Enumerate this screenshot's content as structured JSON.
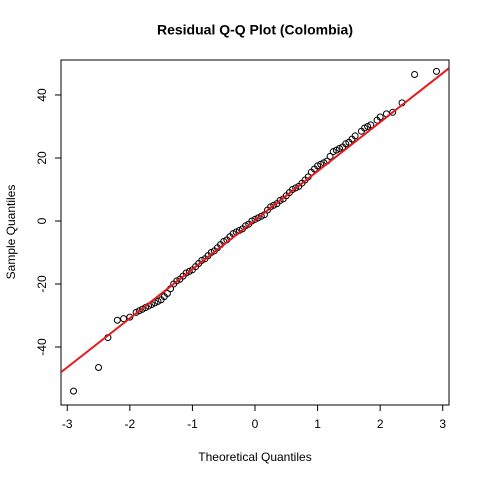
{
  "chart_data": {
    "type": "scatter",
    "title": "Residual Q-Q Plot (Colombia)",
    "x_label": "Theoretical Quantiles",
    "y_label": "Sample Quantiles",
    "x": [
      -2.9,
      -2.5,
      -2.35,
      -2.2,
      -2.1,
      -2.0,
      -1.9,
      -1.85,
      -1.8,
      -1.75,
      -1.7,
      -1.65,
      -1.6,
      -1.55,
      -1.5,
      -1.45,
      -1.4,
      -1.35,
      -1.3,
      -1.25,
      -1.2,
      -1.15,
      -1.1,
      -1.05,
      -1.0,
      -0.95,
      -0.9,
      -0.85,
      -0.8,
      -0.75,
      -0.7,
      -0.65,
      -0.6,
      -0.55,
      -0.5,
      -0.45,
      -0.4,
      -0.35,
      -0.3,
      -0.25,
      -0.2,
      -0.15,
      -0.1,
      -0.05,
      0,
      0.05,
      0.1,
      0.15,
      0.2,
      0.25,
      0.3,
      0.35,
      0.4,
      0.45,
      0.5,
      0.55,
      0.6,
      0.65,
      0.7,
      0.75,
      0.8,
      0.85,
      0.9,
      0.95,
      1.0,
      1.05,
      1.1,
      1.15,
      1.2,
      1.25,
      1.3,
      1.35,
      1.4,
      1.45,
      1.5,
      1.55,
      1.6,
      1.7,
      1.75,
      1.8,
      1.85,
      1.95,
      2.0,
      2.1,
      2.2,
      2.35,
      2.55,
      2.9
    ],
    "y": [
      -54,
      -46.5,
      -37,
      -31.5,
      -31,
      -30.5,
      -29,
      -28.5,
      -28,
      -27.5,
      -27,
      -26.5,
      -26,
      -25.5,
      -25,
      -24,
      -23,
      -21.5,
      -20,
      -19,
      -18.5,
      -17.5,
      -16.5,
      -16,
      -15.5,
      -14.5,
      -13.5,
      -12.5,
      -12,
      -11,
      -10,
      -9.5,
      -8.5,
      -7.5,
      -6.5,
      -6,
      -5,
      -4,
      -3.5,
      -3,
      -2.5,
      -1.5,
      -1,
      0,
      0.5,
      1,
      1.5,
      2,
      3.5,
      4.5,
      5,
      5.5,
      6.5,
      7,
      8,
      9,
      10,
      10.5,
      11,
      12,
      13,
      14,
      15.5,
      16.5,
      17.5,
      18,
      18.5,
      19,
      20.5,
      22,
      22.5,
      23,
      23.5,
      24.5,
      25,
      26,
      27,
      28.5,
      29.5,
      30,
      30.5,
      32,
      33,
      34,
      34.5,
      37.5,
      46.5,
      47.5
    ],
    "point_color": "#000000",
    "reference_line": {
      "x": [
        -3.1,
        3.1
      ],
      "y": [
        -48,
        48.5
      ],
      "color": "#e41a1c"
    },
    "xlim": [
      -3.1,
      3.1
    ],
    "ylim": [
      -58.4,
      51.1
    ],
    "xticks": [
      -3,
      -2,
      -1,
      0,
      1,
      2,
      3
    ],
    "yticks": [
      -40,
      -20,
      0,
      20,
      40
    ],
    "grid": false
  }
}
